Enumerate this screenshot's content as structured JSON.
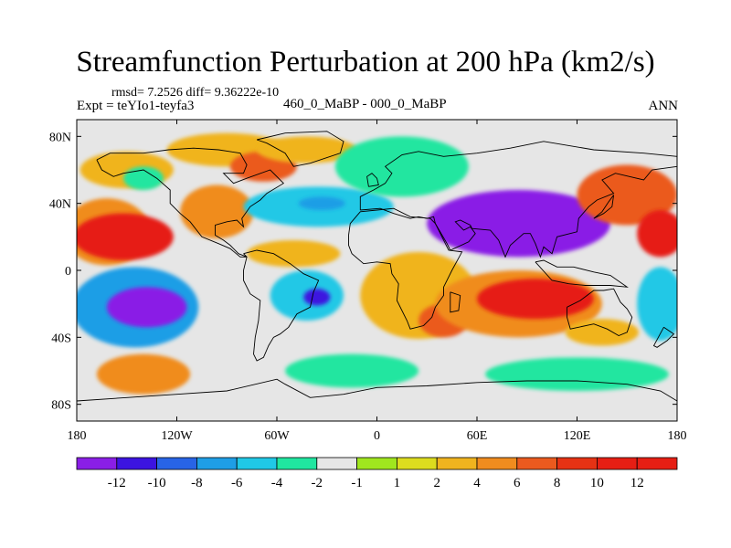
{
  "title": "Streamfunction Perturbation at 200 hPa (km2/s)",
  "stats_text": "rmsd= 7.2526 diff= 9.36222e-10",
  "experiment_label": "Expt = teYIo1-teyfa3",
  "period_label": "460_0_MaBP - 000_0_MaBP",
  "season_label": "ANN",
  "axes": {
    "lon_ticks": [
      "180",
      "120W",
      "60W",
      "0",
      "60E",
      "120E",
      "180"
    ],
    "lat_ticks": [
      "80N",
      "40N",
      "0",
      "40S",
      "80S"
    ],
    "lon_range": [
      -180,
      180
    ],
    "lat_range": [
      -90,
      90
    ]
  },
  "colorbar": {
    "labels": [
      "-12",
      "-10",
      "-8",
      "-6",
      "-4",
      "-2",
      "-1",
      "1",
      "2",
      "4",
      "6",
      "8",
      "10",
      "12"
    ],
    "colors": [
      "#8a1ee6",
      "#3c14e0",
      "#2864e6",
      "#1e9ee6",
      "#20c8e6",
      "#20e6a0",
      "#e6e6e6",
      "#a0e61e",
      "#dcdc1e",
      "#f0b41e",
      "#f08c1e",
      "#eb5a1e",
      "#e63214",
      "#e61e14"
    ]
  },
  "map": {
    "background_color": "#e6e6e6",
    "contour_regions": [
      {
        "value": 6,
        "lon": -162,
        "lat": 23,
        "rx": 26,
        "ry": 20
      },
      {
        "value": 12,
        "lon": -152,
        "lat": 20,
        "rx": 30,
        "ry": 14
      },
      {
        "value": 4,
        "lon": -150,
        "lat": 60,
        "rx": 28,
        "ry": 11
      },
      {
        "value": -2,
        "lon": -140,
        "lat": 55,
        "rx": 12,
        "ry": 7
      },
      {
        "value": 6,
        "lon": -96,
        "lat": 35,
        "rx": 22,
        "ry": 16
      },
      {
        "value": 4,
        "lon": -90,
        "lat": 72,
        "rx": 36,
        "ry": 10
      },
      {
        "value": 8,
        "lon": -68,
        "lat": 62,
        "rx": 20,
        "ry": 9
      },
      {
        "value": 4,
        "lon": -42,
        "lat": 72,
        "rx": 30,
        "ry": 8
      },
      {
        "value": -4,
        "lon": -35,
        "lat": 38,
        "rx": 45,
        "ry": 12
      },
      {
        "value": -6,
        "lon": -33,
        "lat": 40,
        "rx": 14,
        "ry": 4
      },
      {
        "value": 4,
        "lon": -50,
        "lat": 10,
        "rx": 28,
        "ry": 8
      },
      {
        "value": -2,
        "lon": 15,
        "lat": 62,
        "rx": 40,
        "ry": 18
      },
      {
        "value": -12,
        "lon": 85,
        "lat": 28,
        "rx": 55,
        "ry": 20
      },
      {
        "value": -6,
        "lon": -145,
        "lat": -22,
        "rx": 38,
        "ry": 24
      },
      {
        "value": -12,
        "lon": -138,
        "lat": -22,
        "rx": 24,
        "ry": 12
      },
      {
        "value": -4,
        "lon": -42,
        "lat": -15,
        "rx": 22,
        "ry": 15
      },
      {
        "value": -10,
        "lon": -36,
        "lat": -16,
        "rx": 8,
        "ry": 5
      },
      {
        "value": 4,
        "lon": 25,
        "lat": -15,
        "rx": 35,
        "ry": 26
      },
      {
        "value": 8,
        "lon": 40,
        "lat": -30,
        "rx": 15,
        "ry": 10
      },
      {
        "value": 6,
        "lon": 85,
        "lat": -20,
        "rx": 50,
        "ry": 20
      },
      {
        "value": 12,
        "lon": 95,
        "lat": -17,
        "rx": 35,
        "ry": 12
      },
      {
        "value": 8,
        "lon": 150,
        "lat": 45,
        "rx": 30,
        "ry": 18
      },
      {
        "value": 12,
        "lon": 170,
        "lat": 22,
        "rx": 14,
        "ry": 14
      },
      {
        "value": -4,
        "lon": 170,
        "lat": -20,
        "rx": 14,
        "ry": 22
      },
      {
        "value": 6,
        "lon": -140,
        "lat": -62,
        "rx": 28,
        "ry": 12
      },
      {
        "value": -2,
        "lon": -15,
        "lat": -60,
        "rx": 40,
        "ry": 10
      },
      {
        "value": -2,
        "lon": 120,
        "lat": -62,
        "rx": 55,
        "ry": 10
      },
      {
        "value": 4,
        "lon": 135,
        "lat": -37,
        "rx": 22,
        "ry": 8
      }
    ],
    "coastlines": [
      {
        "name": "north america",
        "points": [
          [
            -168,
            66
          ],
          [
            -160,
            70
          ],
          [
            -140,
            70
          ],
          [
            -125,
            72
          ],
          [
            -110,
            73
          ],
          [
            -95,
            72
          ],
          [
            -82,
            70
          ],
          [
            -78,
            63
          ],
          [
            -80,
            58
          ],
          [
            -92,
            58
          ],
          [
            -86,
            52
          ],
          [
            -78,
            55
          ],
          [
            -64,
            60
          ],
          [
            -56,
            52
          ],
          [
            -66,
            46
          ],
          [
            -70,
            42
          ],
          [
            -76,
            38
          ],
          [
            -81,
            31
          ],
          [
            -80,
            26
          ],
          [
            -84,
            30
          ],
          [
            -90,
            29
          ],
          [
            -97,
            27
          ],
          [
            -97,
            21
          ],
          [
            -92,
            18
          ],
          [
            -88,
            15
          ],
          [
            -83,
            10
          ],
          [
            -78,
            8
          ],
          [
            -82,
            8
          ],
          [
            -88,
            13
          ],
          [
            -95,
            16
          ],
          [
            -105,
            20
          ],
          [
            -112,
            29
          ],
          [
            -118,
            34
          ],
          [
            -124,
            40
          ],
          [
            -124,
            48
          ],
          [
            -132,
            55
          ],
          [
            -140,
            60
          ],
          [
            -152,
            58
          ],
          [
            -158,
            56
          ],
          [
            -165,
            60
          ],
          [
            -168,
            66
          ]
        ]
      },
      {
        "name": "greenland",
        "points": [
          [
            -72,
            78
          ],
          [
            -55,
            82
          ],
          [
            -30,
            83
          ],
          [
            -20,
            77
          ],
          [
            -22,
            70
          ],
          [
            -40,
            64
          ],
          [
            -50,
            62
          ],
          [
            -55,
            70
          ],
          [
            -66,
            76
          ],
          [
            -72,
            78
          ]
        ]
      },
      {
        "name": "south america",
        "points": [
          [
            -80,
            10
          ],
          [
            -72,
            12
          ],
          [
            -62,
            10
          ],
          [
            -52,
            4
          ],
          [
            -44,
            -2
          ],
          [
            -35,
            -6
          ],
          [
            -38,
            -13
          ],
          [
            -40,
            -22
          ],
          [
            -48,
            -26
          ],
          [
            -53,
            -34
          ],
          [
            -58,
            -38
          ],
          [
            -62,
            -40
          ],
          [
            -65,
            -45
          ],
          [
            -68,
            -52
          ],
          [
            -72,
            -54
          ],
          [
            -74,
            -50
          ],
          [
            -73,
            -40
          ],
          [
            -71,
            -30
          ],
          [
            -70,
            -18
          ],
          [
            -76,
            -14
          ],
          [
            -80,
            -6
          ],
          [
            -80,
            0
          ],
          [
            -78,
            8
          ],
          [
            -80,
            10
          ]
        ]
      },
      {
        "name": "eurasia",
        "points": [
          [
            -10,
            36
          ],
          [
            -10,
            44
          ],
          [
            -2,
            48
          ],
          [
            5,
            52
          ],
          [
            9,
            58
          ],
          [
            5,
            62
          ],
          [
            15,
            69
          ],
          [
            25,
            71
          ],
          [
            40,
            68
          ],
          [
            60,
            70
          ],
          [
            80,
            73
          ],
          [
            100,
            77
          ],
          [
            130,
            72
          ],
          [
            160,
            70
          ],
          [
            180,
            68
          ],
          [
            180,
            62
          ],
          [
            165,
            60
          ],
          [
            160,
            54
          ],
          [
            143,
            58
          ],
          [
            135,
            54
          ],
          [
            142,
            46
          ],
          [
            132,
            42
          ],
          [
            127,
            38
          ],
          [
            121,
            31
          ],
          [
            120,
            23
          ],
          [
            108,
            20
          ],
          [
            105,
            10
          ],
          [
            100,
            14
          ],
          [
            98,
            8
          ],
          [
            95,
            16
          ],
          [
            92,
            22
          ],
          [
            88,
            22
          ],
          [
            80,
            15
          ],
          [
            77,
            8
          ],
          [
            73,
            18
          ],
          [
            68,
            24
          ],
          [
            57,
            25
          ],
          [
            56,
            27
          ],
          [
            50,
            30
          ],
          [
            47,
            29
          ],
          [
            52,
            24
          ],
          [
            56,
            26
          ],
          [
            59,
            22
          ],
          [
            55,
            17
          ],
          [
            44,
            12
          ],
          [
            42,
            16
          ],
          [
            35,
            28
          ],
          [
            34,
            32
          ],
          [
            30,
            31
          ],
          [
            25,
            32
          ],
          [
            20,
            31
          ],
          [
            10,
            34
          ],
          [
            2,
            37
          ],
          [
            -10,
            36
          ]
        ]
      },
      {
        "name": "africa",
        "points": [
          [
            -17,
            21
          ],
          [
            -16,
            28
          ],
          [
            -10,
            35
          ],
          [
            0,
            36
          ],
          [
            10,
            37
          ],
          [
            20,
            32
          ],
          [
            32,
            31
          ],
          [
            35,
            28
          ],
          [
            43,
            12
          ],
          [
            51,
            11
          ],
          [
            45,
            0
          ],
          [
            40,
            -10
          ],
          [
            40,
            -15
          ],
          [
            35,
            -22
          ],
          [
            33,
            -28
          ],
          [
            28,
            -33
          ],
          [
            20,
            -35
          ],
          [
            18,
            -30
          ],
          [
            12,
            -18
          ],
          [
            13,
            -8
          ],
          [
            9,
            -2
          ],
          [
            8,
            4
          ],
          [
            0,
            5
          ],
          [
            -8,
            4
          ],
          [
            -15,
            10
          ],
          [
            -17,
            15
          ],
          [
            -17,
            21
          ]
        ]
      },
      {
        "name": "australia",
        "points": [
          [
            114,
            -22
          ],
          [
            122,
            -18
          ],
          [
            130,
            -12
          ],
          [
            136,
            -12
          ],
          [
            142,
            -11
          ],
          [
            144,
            -15
          ],
          [
            146,
            -19
          ],
          [
            150,
            -23
          ],
          [
            153,
            -28
          ],
          [
            150,
            -37
          ],
          [
            145,
            -39
          ],
          [
            138,
            -35
          ],
          [
            130,
            -32
          ],
          [
            116,
            -35
          ],
          [
            114,
            -28
          ],
          [
            114,
            -22
          ]
        ]
      },
      {
        "name": "antarctica",
        "points": [
          [
            -180,
            -78
          ],
          [
            -150,
            -76
          ],
          [
            -120,
            -74
          ],
          [
            -90,
            -72
          ],
          [
            -60,
            -65
          ],
          [
            -55,
            -68
          ],
          [
            -40,
            -76
          ],
          [
            -20,
            -74
          ],
          [
            0,
            -70
          ],
          [
            30,
            -69
          ],
          [
            60,
            -67
          ],
          [
            90,
            -66
          ],
          [
            120,
            -66
          ],
          [
            150,
            -68
          ],
          [
            170,
            -72
          ],
          [
            180,
            -78
          ]
        ]
      },
      {
        "name": "madagascar",
        "points": [
          [
            44,
            -13
          ],
          [
            50,
            -15
          ],
          [
            49,
            -24
          ],
          [
            44,
            -25
          ],
          [
            44,
            -13
          ]
        ]
      },
      {
        "name": "uk",
        "points": [
          [
            -5,
            50
          ],
          [
            1,
            51
          ],
          [
            0,
            55
          ],
          [
            -3,
            58
          ],
          [
            -6,
            56
          ],
          [
            -5,
            50
          ]
        ]
      },
      {
        "name": "japan",
        "points": [
          [
            130,
            31
          ],
          [
            136,
            34
          ],
          [
            141,
            38
          ],
          [
            142,
            45
          ],
          [
            139,
            41
          ],
          [
            135,
            35
          ],
          [
            130,
            31
          ]
        ]
      },
      {
        "name": "new zealand",
        "points": [
          [
            172,
            -34
          ],
          [
            178,
            -38
          ],
          [
            174,
            -42
          ],
          [
            168,
            -46
          ],
          [
            166,
            -45
          ],
          [
            172,
            -34
          ]
        ]
      },
      {
        "name": "indonesia",
        "points": [
          [
            95,
            5
          ],
          [
            105,
            -6
          ],
          [
            115,
            -8
          ],
          [
            125,
            -9
          ],
          [
            140,
            -9
          ],
          [
            150,
            -10
          ],
          [
            140,
            -3
          ],
          [
            130,
            -1
          ],
          [
            118,
            2
          ],
          [
            108,
            2
          ],
          [
            100,
            6
          ],
          [
            95,
            5
          ]
        ]
      }
    ]
  }
}
